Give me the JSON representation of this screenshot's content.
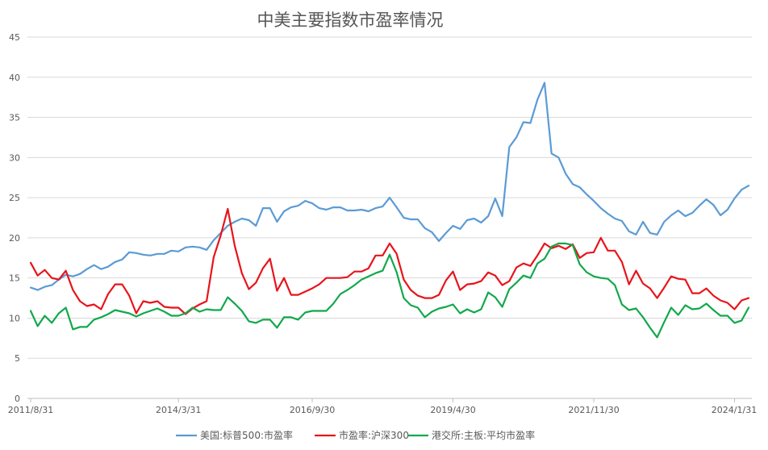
{
  "chart_data": {
    "type": "line",
    "title": "中美主要指数市盈率情况",
    "xlabel": "",
    "ylabel": "",
    "ylim": [
      0,
      45
    ],
    "yticks": [
      0,
      5,
      10,
      15,
      20,
      25,
      30,
      35,
      40,
      45
    ],
    "xtick_labels": [
      "2011/8/31",
      "2014/3/31",
      "2016/9/30",
      "2019/4/30",
      "2021/11/30",
      "2024/1/31"
    ],
    "xtick_index": [
      0,
      21,
      40,
      60,
      80,
      100
    ],
    "grid": "horizontal",
    "legend_position": "bottom",
    "colors": {
      "sp500": "#5B9BD5",
      "hs300": "#E8141B",
      "hkex": "#12A84C"
    },
    "series": [
      {
        "name": "美国:标普500:市盈率",
        "color": "#5B9BD5",
        "values": [
          13.8,
          13.5,
          13.9,
          14.1,
          14.8,
          15.4,
          15.2,
          15.5,
          16.1,
          16.6,
          16.1,
          16.4,
          17.0,
          17.3,
          18.2,
          18.1,
          17.9,
          17.8,
          18.0,
          18.0,
          18.4,
          18.3,
          18.8,
          18.9,
          18.8,
          18.5,
          19.7,
          20.6,
          21.5,
          22.0,
          22.4,
          22.2,
          21.5,
          23.7,
          23.7,
          22.0,
          23.3,
          23.8,
          24.0,
          24.6,
          24.3,
          23.7,
          23.5,
          23.8,
          23.8,
          23.4,
          23.4,
          23.5,
          23.3,
          23.7,
          23.9,
          25.0,
          23.8,
          22.5,
          22.3,
          22.3,
          21.2,
          20.7,
          19.6,
          20.6,
          21.5,
          21.1,
          22.2,
          22.4,
          21.9,
          22.7,
          24.9,
          22.7,
          31.3,
          32.5,
          34.4,
          34.3,
          37.2,
          39.3,
          30.5,
          30.0,
          28.0,
          26.7,
          26.3,
          25.4,
          24.6,
          23.7,
          23.0,
          22.4,
          22.1,
          20.8,
          20.4,
          22.0,
          20.6,
          20.4,
          22.0,
          22.8,
          23.4,
          22.7,
          23.1,
          24.0,
          24.8,
          24.1,
          22.8,
          23.5,
          24.9,
          26.0,
          26.5
        ]
      },
      {
        "name": "市盈率:沪深300",
        "color": "#E8141B",
        "values": [
          16.9,
          15.3,
          16.0,
          15.0,
          14.8,
          15.9,
          13.5,
          12.1,
          11.5,
          11.7,
          11.1,
          13.0,
          14.2,
          14.2,
          12.8,
          10.6,
          12.1,
          11.9,
          12.1,
          11.4,
          11.3,
          11.3,
          10.5,
          11.2,
          11.7,
          12.1,
          17.6,
          20.3,
          23.6,
          19.0,
          15.6,
          13.6,
          14.4,
          16.2,
          17.4,
          13.4,
          15.0,
          12.9,
          12.9,
          13.3,
          13.7,
          14.2,
          15.0,
          15.0,
          15.0,
          15.1,
          15.8,
          15.8,
          16.2,
          17.8,
          17.8,
          19.3,
          18.0,
          14.8,
          13.5,
          12.8,
          12.5,
          12.5,
          12.9,
          14.7,
          15.8,
          13.5,
          14.2,
          14.3,
          14.6,
          15.7,
          15.3,
          14.1,
          14.6,
          16.3,
          16.8,
          16.5,
          17.8,
          19.3,
          18.7,
          19.0,
          18.6,
          19.2,
          17.5,
          18.1,
          18.2,
          20.0,
          18.4,
          18.4,
          17.0,
          14.2,
          15.9,
          14.3,
          13.7,
          12.5,
          13.8,
          15.2,
          14.9,
          14.8,
          13.1,
          13.1,
          13.7,
          12.8,
          12.2,
          11.9,
          11.1,
          12.2,
          12.5
        ]
      },
      {
        "name": "港交所:主板:平均市盈率",
        "color": "#12A84C",
        "values": [
          10.9,
          9.0,
          10.3,
          9.4,
          10.6,
          11.3,
          8.6,
          8.9,
          8.9,
          9.8,
          10.1,
          10.5,
          11.0,
          10.8,
          10.6,
          10.2,
          10.6,
          10.9,
          11.2,
          10.8,
          10.3,
          10.3,
          10.6,
          11.3,
          10.8,
          11.1,
          11.0,
          11.0,
          12.6,
          11.8,
          10.9,
          9.6,
          9.4,
          9.8,
          9.8,
          8.8,
          10.1,
          10.1,
          9.8,
          10.7,
          10.9,
          10.9,
          10.9,
          11.8,
          13.0,
          13.5,
          14.1,
          14.8,
          15.2,
          15.6,
          15.9,
          17.9,
          15.7,
          12.5,
          11.6,
          11.3,
          10.1,
          10.8,
          11.2,
          11.4,
          11.7,
          10.6,
          11.1,
          10.7,
          11.1,
          13.2,
          12.6,
          11.4,
          13.6,
          14.4,
          15.3,
          15.0,
          16.8,
          17.4,
          18.9,
          19.3,
          19.3,
          19.1,
          16.7,
          15.7,
          15.2,
          15.0,
          14.9,
          14.1,
          11.7,
          11.0,
          11.2,
          10.1,
          8.8,
          7.6,
          9.5,
          11.3,
          10.4,
          11.6,
          11.1,
          11.2,
          11.8,
          11.0,
          10.3,
          10.3,
          9.4,
          9.7,
          11.3
        ]
      }
    ]
  }
}
